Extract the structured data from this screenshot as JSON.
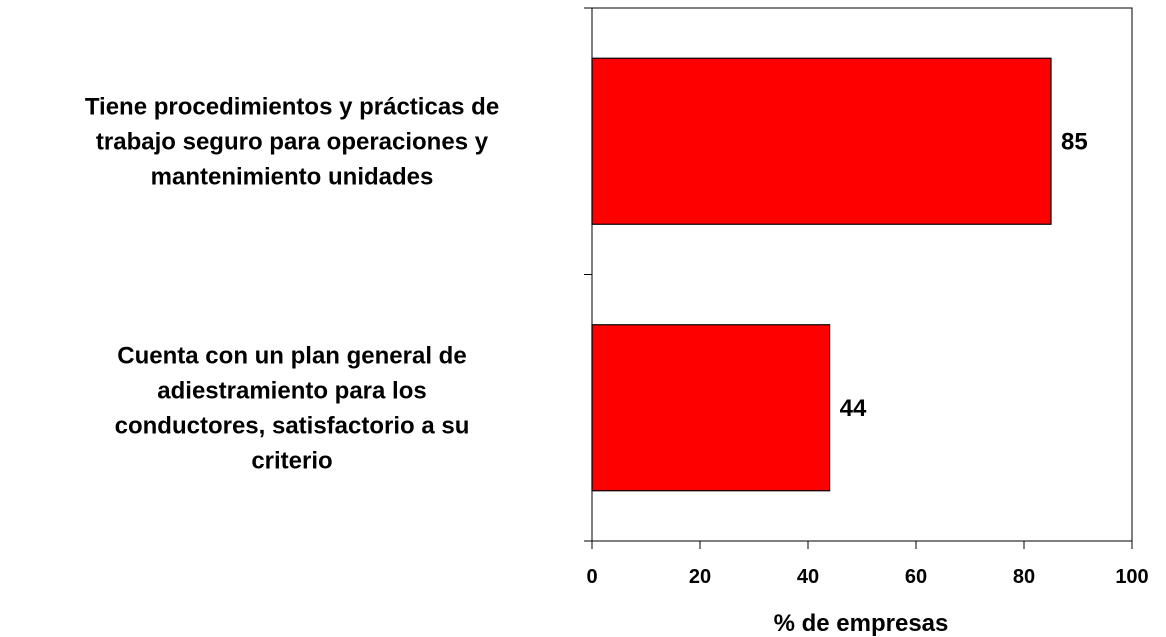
{
  "chart_data": {
    "type": "bar",
    "orientation": "horizontal",
    "categories": [
      [
        "Tiene procedimientos y prácticas de",
        "trabajo seguro para operaciones y",
        "mantenimiento unidades"
      ],
      [
        "Cuenta con un plan general de",
        "adiestramiento para los",
        "conductores, satisfactorio a su",
        "criterio"
      ]
    ],
    "values": [
      85,
      44
    ],
    "value_labels": [
      "85",
      "44"
    ],
    "xlabel": "% de empresas",
    "xlim": [
      0,
      100
    ],
    "x_ticks": [
      "0",
      "20",
      "40",
      "60",
      "80",
      "100"
    ],
    "grid": false,
    "legend": "none",
    "bar_color": "#FF0000",
    "bar_edge_color": "#000000"
  }
}
